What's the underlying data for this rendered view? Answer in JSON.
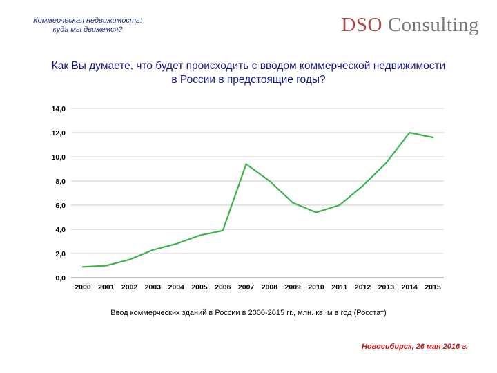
{
  "header": {
    "topic_line1": "Коммерческая недвижимость:",
    "topic_line2": "куда мы движемся?",
    "logo_brand": "DSO",
    "logo_rest": "Consulting"
  },
  "question": {
    "line1": "Как Вы думаете, что будет происходить с вводом коммерческой недвижимости",
    "line2": "в России в предстоящие годы?"
  },
  "chart_data": {
    "type": "line",
    "title": "",
    "xlabel": "",
    "ylabel": "",
    "categories": [
      "2000",
      "2001",
      "2002",
      "2003",
      "2004",
      "2005",
      "2006",
      "2007",
      "2008",
      "2009",
      "2010",
      "2011",
      "2012",
      "2013",
      "2014",
      "2015"
    ],
    "series": [
      {
        "values": [
          0.9,
          1.0,
          1.5,
          2.3,
          2.8,
          3.5,
          3.9,
          9.4,
          8.0,
          6.2,
          5.4,
          6.0,
          7.6,
          9.5,
          12.0,
          11.6
        ]
      }
    ],
    "ylim": [
      0,
      14
    ],
    "yticks": [
      "0,0",
      "2,0",
      "4,0",
      "6,0",
      "8,0",
      "10,0",
      "12,0",
      "14,0"
    ],
    "grid": true,
    "line_color": "#3cb44b"
  },
  "caption": "Ввод коммерческих зданий в России в 2000-2015 гг., млн. кв. м в год (Росстат)",
  "footer": "Новосибирск, 26 мая 2016 г."
}
